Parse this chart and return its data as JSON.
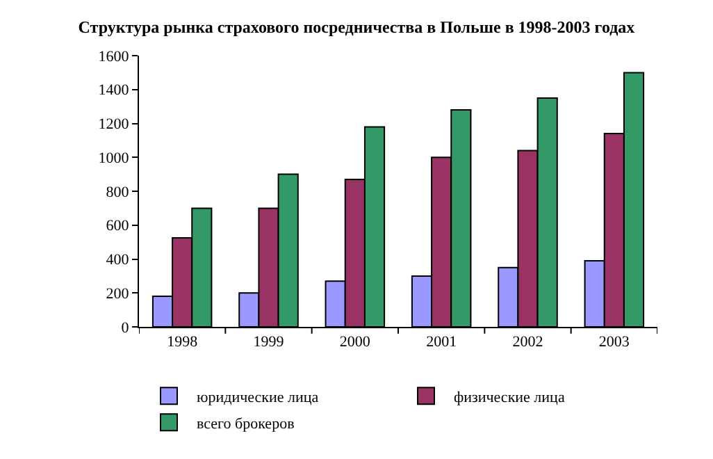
{
  "chart_data": {
    "type": "bar",
    "title": "Структура рынка страхового посредничества в Польше в 1998-2003 годах",
    "categories": [
      "1998",
      "1999",
      "2000",
      "2001",
      "2002",
      "2003"
    ],
    "series": [
      {
        "name": "юридические лица",
        "color": "#9999ff",
        "values": [
          180,
          200,
          270,
          300,
          350,
          390
        ]
      },
      {
        "name": "физические лица",
        "color": "#993366",
        "values": [
          525,
          700,
          870,
          1000,
          1040,
          1140
        ]
      },
      {
        "name": "всего брокеров",
        "color": "#339966",
        "values": [
          700,
          900,
          1180,
          1280,
          1350,
          1500
        ]
      }
    ],
    "ylim": [
      0,
      1600
    ],
    "yticks": [
      0,
      200,
      400,
      600,
      800,
      1000,
      1200,
      1400,
      1600
    ],
    "grid": false,
    "legend": "bottom"
  }
}
